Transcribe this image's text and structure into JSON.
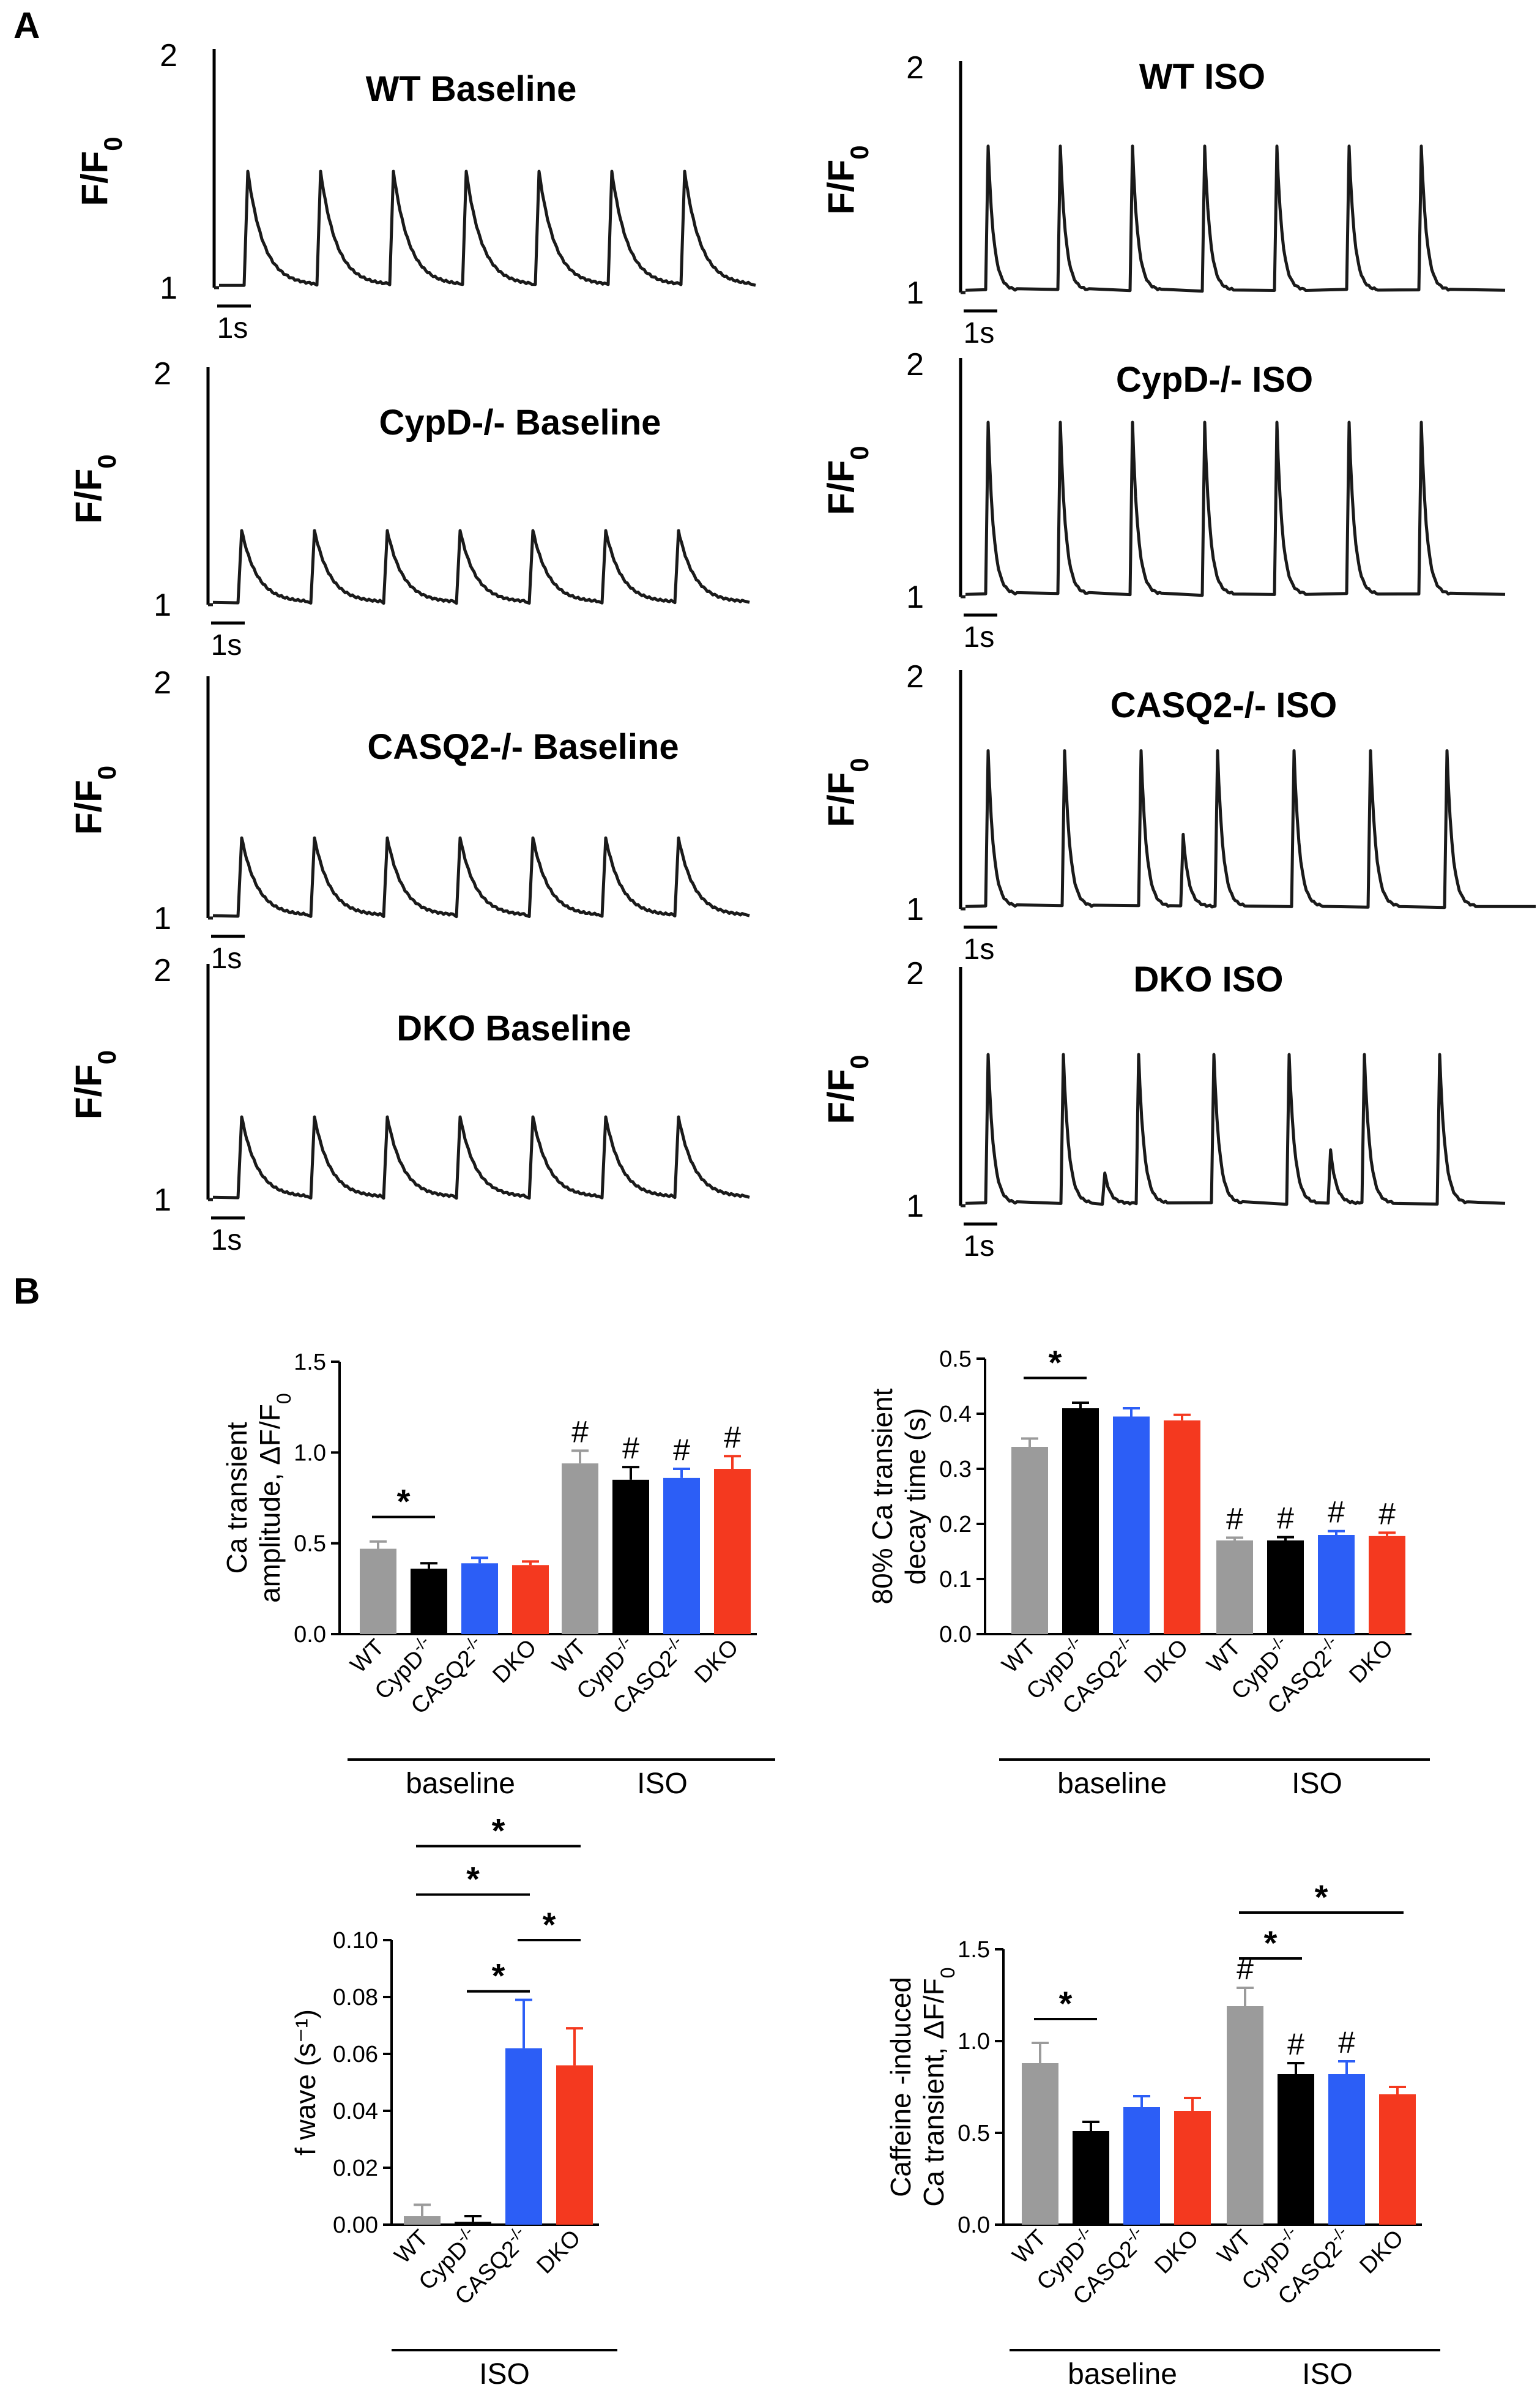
{
  "panel_letters": {
    "a": "A",
    "b": "B"
  },
  "chart_data": [
    {
      "type": "line",
      "title": "WT Baseline",
      "ylabel": "F/F0",
      "ylim": [
        1,
        2
      ],
      "yticks": [
        "1",
        "2"
      ],
      "scale_bar": "1s",
      "beats": 7,
      "peak": 1.5,
      "decay": "slow",
      "extra_peaks": []
    },
    {
      "type": "line",
      "title": "CypD-/- Baseline",
      "ylabel": "F/F0",
      "ylim": [
        1,
        2
      ],
      "yticks": [
        "1",
        "2"
      ],
      "scale_bar": "1s",
      "beats": 7,
      "peak": 1.32,
      "decay": "slow",
      "extra_peaks": []
    },
    {
      "type": "line",
      "title": "CASQ2-/- Baseline",
      "ylabel": "F/F0",
      "ylim": [
        1,
        2
      ],
      "yticks": [
        "1",
        "2"
      ],
      "scale_bar": "1s",
      "beats": 7,
      "peak": 1.34,
      "decay": "slow",
      "extra_peaks": []
    },
    {
      "type": "line",
      "title": "DKO Baseline",
      "ylabel": "F/F0",
      "ylim": [
        1,
        2
      ],
      "yticks": [
        "1",
        "2"
      ],
      "scale_bar": "1s",
      "beats": 7,
      "peak": 1.36,
      "decay": "slow",
      "extra_peaks": []
    },
    {
      "type": "line",
      "title": "WT ISO",
      "ylabel": "F/F0",
      "ylim": [
        1,
        2
      ],
      "yticks": [
        "1",
        "2"
      ],
      "scale_bar": "1s",
      "beats": 7,
      "peak": 1.65,
      "decay": "fast",
      "extra_peaks": []
    },
    {
      "type": "line",
      "title": "CypD-/- ISO",
      "ylabel": "F/F0",
      "ylim": [
        1,
        2
      ],
      "yticks": [
        "1",
        "2"
      ],
      "scale_bar": "1s",
      "beats": 7,
      "peak": 1.75,
      "decay": "fast",
      "extra_peaks": []
    },
    {
      "type": "line",
      "title": "CASQ2-/- ISO",
      "ylabel": "F/F0",
      "ylim": [
        1,
        2
      ],
      "yticks": [
        "1",
        "2"
      ],
      "scale_bar": "1s",
      "beats": 7,
      "peak": 1.68,
      "decay": "fast",
      "extra_peaks": [
        {
          "after_beat": 2,
          "peak": 1.32
        }
      ]
    },
    {
      "type": "line",
      "title": "DKO ISO",
      "ylabel": "F/F0",
      "ylim": [
        1,
        2
      ],
      "yticks": [
        "1",
        "2"
      ],
      "scale_bar": "1s",
      "beats": 7,
      "peak": 1.65,
      "decay": "fast",
      "extra_peaks": [
        {
          "after_beat": 1,
          "peak": 1.14
        },
        {
          "after_beat": 4,
          "peak": 1.24
        }
      ]
    },
    {
      "type": "bar",
      "ylabel_lines": [
        "Ca transient",
        "amplitude, ΔF/F0"
      ],
      "ylim": [
        0,
        1.5
      ],
      "yticks": [
        "0.0",
        "0.5",
        "1.0",
        "1.5"
      ],
      "categories": [
        "WT",
        "CypD-/-",
        "CASQ2-/-",
        "DKO",
        "WT",
        "CypD-/-",
        "CASQ2-/-",
        "DKO"
      ],
      "values": [
        0.47,
        0.36,
        0.39,
        0.38,
        0.94,
        0.85,
        0.86,
        0.91
      ],
      "errors": [
        0.04,
        0.03,
        0.03,
        0.02,
        0.07,
        0.07,
        0.05,
        0.07
      ],
      "colors": [
        "#9b9b9b",
        "#000000",
        "#2c5ef6",
        "#f4391f",
        "#9b9b9b",
        "#000000",
        "#2c5ef6",
        "#f4391f"
      ],
      "hash": [
        false,
        false,
        false,
        false,
        true,
        true,
        true,
        true
      ],
      "groups": [
        {
          "label": "baseline",
          "from": 0,
          "to": 3
        },
        {
          "label": "ISO",
          "from": 4,
          "to": 7
        }
      ],
      "sig": [
        {
          "from": 0,
          "to": 1,
          "label": "*"
        }
      ]
    },
    {
      "type": "bar",
      "ylabel_lines": [
        "80% Ca transient",
        "decay time (s)"
      ],
      "ylim": [
        0,
        0.5
      ],
      "yticks": [
        "0.0",
        "0.1",
        "0.2",
        "0.3",
        "0.4",
        "0.5"
      ],
      "categories": [
        "WT",
        "CypD-/-",
        "CASQ2-/-",
        "DKO",
        "WT",
        "CypD-/-",
        "CASQ2-/-",
        "DKO"
      ],
      "values": [
        0.34,
        0.41,
        0.395,
        0.388,
        0.17,
        0.17,
        0.18,
        0.178
      ],
      "errors": [
        0.015,
        0.01,
        0.015,
        0.01,
        0.005,
        0.006,
        0.007,
        0.006
      ],
      "colors": [
        "#9b9b9b",
        "#000000",
        "#2c5ef6",
        "#f4391f",
        "#9b9b9b",
        "#000000",
        "#2c5ef6",
        "#f4391f"
      ],
      "hash": [
        false,
        false,
        false,
        false,
        true,
        true,
        true,
        true
      ],
      "groups": [
        {
          "label": "baseline",
          "from": 0,
          "to": 3
        },
        {
          "label": "ISO",
          "from": 4,
          "to": 7
        }
      ],
      "sig": [
        {
          "from": 0,
          "to": 1,
          "label": "*"
        }
      ]
    },
    {
      "type": "bar",
      "ylabel_lines": [
        "f wave (s⁻¹)"
      ],
      "ylim": [
        0,
        0.1
      ],
      "yticks": [
        "0.00",
        "0.02",
        "0.04",
        "0.06",
        "0.08",
        "0.10"
      ],
      "categories": [
        "WT",
        "CypD-/-",
        "CASQ2-/-",
        "DKO"
      ],
      "values": [
        0.003,
        0.001,
        0.062,
        0.056
      ],
      "errors": [
        0.004,
        0.002,
        0.017,
        0.013
      ],
      "colors": [
        "#9b9b9b",
        "#000000",
        "#2c5ef6",
        "#f4391f"
      ],
      "hash": [
        false,
        false,
        false,
        false
      ],
      "groups": [
        {
          "label": "ISO",
          "from": 0,
          "to": 3
        }
      ],
      "sig": [
        {
          "from": 1,
          "to": 2,
          "label": "*",
          "y": 0.082
        },
        {
          "from": 2,
          "to": 3,
          "label": "*",
          "y": 0.1
        },
        {
          "from": 0,
          "to": 2,
          "label": "*",
          "y": 0.116
        },
        {
          "from": 0,
          "to": 3,
          "label": "*",
          "y": 0.133
        }
      ]
    },
    {
      "type": "bar",
      "ylabel_lines": [
        "Caffeine -induced",
        "Ca transient, ΔF/F0"
      ],
      "ylim": [
        0,
        1.5
      ],
      "yticks": [
        "0.0",
        "0.5",
        "1.0",
        "1.5"
      ],
      "categories": [
        "WT",
        "CypD-/-",
        "CASQ2-/-",
        "DKO",
        "WT",
        "CypD-/-",
        "CASQ2-/-",
        "DKO"
      ],
      "values": [
        0.88,
        0.51,
        0.64,
        0.62,
        1.19,
        0.82,
        0.82,
        0.71
      ],
      "errors": [
        0.11,
        0.05,
        0.06,
        0.07,
        0.1,
        0.06,
        0.07,
        0.04
      ],
      "colors": [
        "#9b9b9b",
        "#000000",
        "#2c5ef6",
        "#f4391f",
        "#9b9b9b",
        "#000000",
        "#2c5ef6",
        "#f4391f"
      ],
      "hash": [
        false,
        false,
        false,
        false,
        true,
        true,
        true,
        false
      ],
      "groups": [
        {
          "label": "baseline",
          "from": 0,
          "to": 3
        },
        {
          "label": "ISO",
          "from": 4,
          "to": 7
        }
      ],
      "sig": [
        {
          "from": 0,
          "to": 1,
          "label": "*",
          "y": 1.12
        },
        {
          "from": 4,
          "to": 5,
          "label": "*",
          "y": 1.45
        },
        {
          "from": 4,
          "to": 7,
          "label": "*",
          "y": 1.7
        }
      ]
    }
  ]
}
